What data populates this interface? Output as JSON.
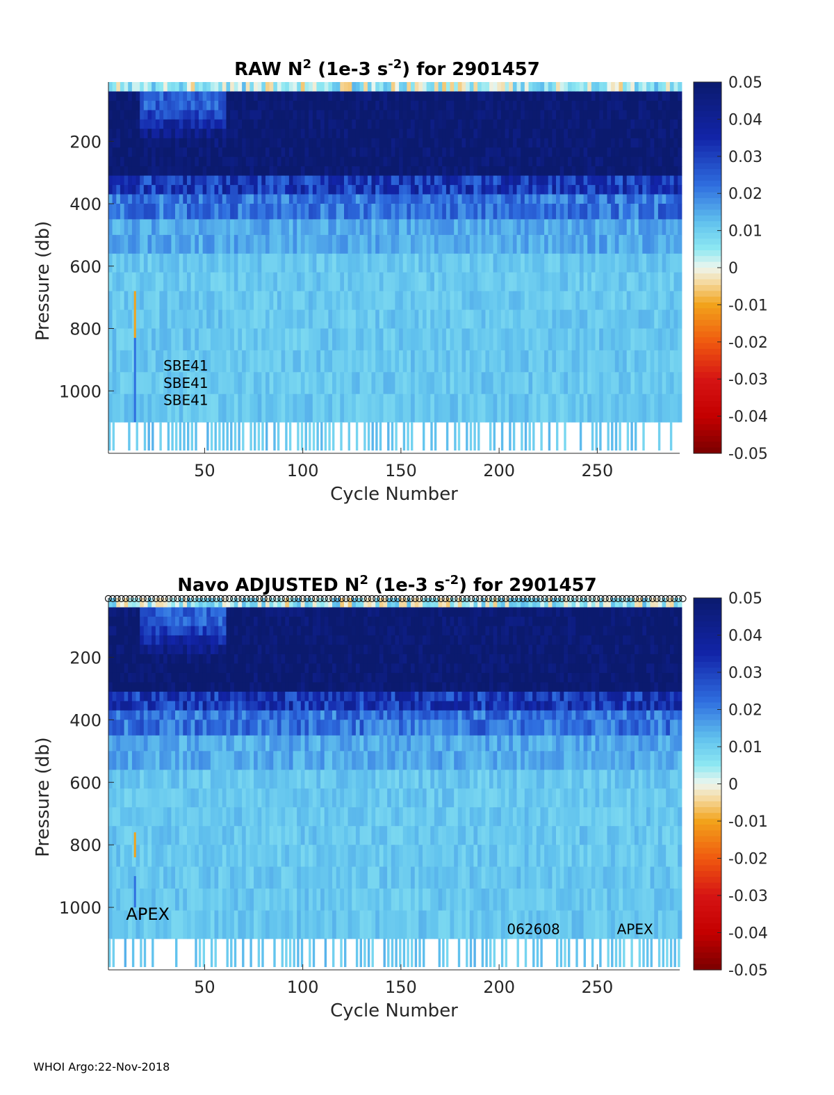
{
  "footer": "WHOI Argo:22-Nov-2018",
  "colors": {
    "deep": "#0b1a6e",
    "dark_blue": "#1224a8",
    "mid_blue": "#2f6fe0",
    "light_blue": "#62c3ee",
    "cyan": "#8ee8f2",
    "near_zero": "#eef6ee",
    "orange": "#f2a31b",
    "red": "#d61414"
  },
  "chart_data": [
    {
      "type": "heatmap",
      "title": {
        "prefix": "RAW N",
        "sup1": "2",
        "middle": " (1e-3 s",
        "sup2": "-2",
        "suffix": ") for 2901457"
      },
      "xlabel": "Cycle Number",
      "ylabel": "Pressure (db)",
      "xlim": [
        1,
        292
      ],
      "ylim": [
        1200,
        10
      ],
      "xticks": [
        "50",
        "100",
        "150",
        "200",
        "250"
      ],
      "yticks": [
        "200",
        "400",
        "600",
        "800",
        "1000"
      ],
      "colorbar": {
        "range": [
          -0.05,
          0.05
        ],
        "ticks": [
          "0.05",
          "0.04",
          "0.03",
          "0.02",
          "0.01",
          "0",
          "-0.01",
          "-0.02",
          "-0.03",
          "-0.04",
          "-0.05"
        ]
      },
      "annotations": [
        {
          "text": "SBE41",
          "cycle": 29,
          "pressure": 935
        },
        {
          "text": "SBE41",
          "cycle": 29,
          "pressure": 990
        },
        {
          "text": "SBE41",
          "cycle": 29,
          "pressure": 1045
        }
      ],
      "top_markers": false
    },
    {
      "type": "heatmap",
      "title": {
        "prefix": "Navo  ADJUSTED N",
        "sup1": "2",
        "middle": " (1e-3 s",
        "sup2": "-2",
        "suffix": ") for 2901457"
      },
      "xlabel": "Cycle Number",
      "ylabel": "Pressure (db)",
      "xlim": [
        1,
        292
      ],
      "ylim": [
        1200,
        10
      ],
      "xticks": [
        "50",
        "100",
        "150",
        "200",
        "250"
      ],
      "yticks": [
        "200",
        "400",
        "600",
        "800",
        "1000"
      ],
      "colorbar": {
        "range": [
          -0.05,
          0.05
        ],
        "ticks": [
          "0.05",
          "0.04",
          "0.03",
          "0.02",
          "0.01",
          "0",
          "-0.01",
          "-0.02",
          "-0.03",
          "-0.04",
          "-0.05"
        ]
      },
      "annotations": [
        {
          "text": "APEX",
          "cycle": 10,
          "pressure": 1040
        },
        {
          "text": "062608",
          "cycle": 204,
          "pressure": 1085
        },
        {
          "text": "APEX",
          "cycle": 260,
          "pressure": 1085
        }
      ],
      "top_markers": true
    }
  ]
}
